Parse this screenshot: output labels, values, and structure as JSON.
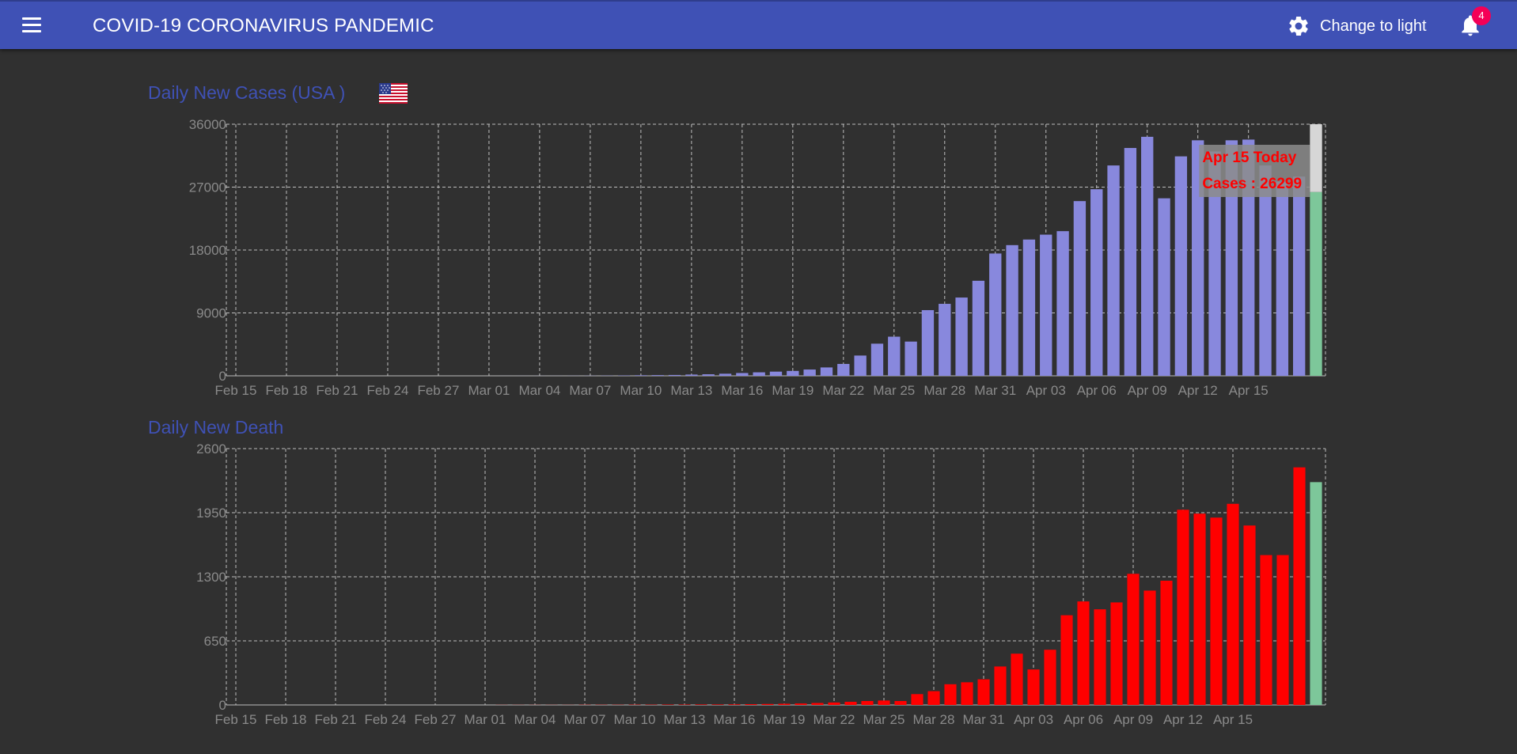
{
  "header": {
    "title": "COVID-19 CORONAVIRUS PANDEMIC",
    "theme_toggle_label": "Change to light",
    "notification_count": "4",
    "icons": [
      "menu-icon",
      "gear-icon",
      "bell-icon"
    ]
  },
  "colors": {
    "appbar": "#3f51b5",
    "background": "#303030",
    "cases_bar": "#8888dd",
    "death_bar": "#ff0000",
    "today_bar": "#7dc79a",
    "badge": "#f50057"
  },
  "chart_data": [
    {
      "type": "bar",
      "title": "Daily New Cases (USA )",
      "xlabel": "",
      "ylabel": "",
      "ylim": [
        0,
        36000
      ],
      "yticks": [
        "0",
        "9000",
        "18000",
        "27000",
        "36000"
      ],
      "xticks": [
        "Feb 15",
        "Feb 18",
        "Feb 21",
        "Feb 24",
        "Feb 27",
        "Mar 01",
        "Mar 04",
        "Mar 07",
        "Mar 10",
        "Mar 13",
        "Mar 16",
        "Mar 19",
        "Mar 22",
        "Mar 25",
        "Mar 28",
        "Mar 31",
        "Apr 03",
        "Apr 06",
        "Apr 09",
        "Apr 12",
        "Apr 15"
      ],
      "grid": true,
      "values": [
        0,
        0,
        0,
        0,
        0,
        0,
        0,
        0,
        0,
        0,
        0,
        0,
        0,
        0,
        0,
        0,
        3,
        5,
        8,
        10,
        15,
        20,
        30,
        50,
        80,
        100,
        120,
        180,
        220,
        300,
        400,
        500,
        600,
        700,
        900,
        1200,
        1700,
        2900,
        4600,
        5600,
        4900,
        9400,
        10300,
        11200,
        13600,
        17500,
        18700,
        19500,
        20200,
        20700,
        25000,
        26700,
        30100,
        32600,
        34200,
        25400,
        31400,
        33700,
        32100,
        33700,
        33800,
        30100,
        27800,
        28500,
        26300
      ],
      "today": {
        "date_label": "Apr 15 Today",
        "value_label": "Cases : 26299",
        "value": 26299
      }
    },
    {
      "type": "bar",
      "title": "Daily New Death",
      "xlabel": "",
      "ylabel": "",
      "ylim": [
        0,
        2600
      ],
      "yticks": [
        "0",
        "650",
        "1300",
        "1950",
        "2600"
      ],
      "xticks": [
        "Feb 15",
        "Feb 18",
        "Feb 21",
        "Feb 24",
        "Feb 27",
        "Mar 01",
        "Mar 04",
        "Mar 07",
        "Mar 10",
        "Mar 13",
        "Mar 16",
        "Mar 19",
        "Mar 22",
        "Mar 25",
        "Mar 28",
        "Mar 31",
        "Apr 03",
        "Apr 06",
        "Apr 09",
        "Apr 12",
        "Apr 15"
      ],
      "grid": true,
      "values": [
        0,
        0,
        0,
        0,
        0,
        0,
        0,
        0,
        0,
        0,
        0,
        0,
        0,
        0,
        0,
        0,
        1,
        1,
        1,
        1,
        1,
        2,
        2,
        2,
        3,
        3,
        4,
        4,
        5,
        5,
        6,
        8,
        10,
        12,
        15,
        20,
        25,
        32,
        40,
        45,
        40,
        110,
        140,
        210,
        230,
        260,
        390,
        520,
        360,
        560,
        910,
        1050,
        970,
        1040,
        1330,
        1160,
        1260,
        1980,
        1940,
        1900,
        2040,
        1820,
        1520,
        1520,
        2410,
        2260
      ]
    }
  ]
}
